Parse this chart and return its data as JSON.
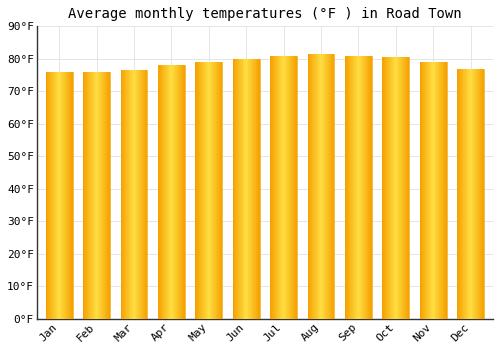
{
  "title": "Average monthly temperatures (°F ) in Road Town",
  "months": [
    "Jan",
    "Feb",
    "Mar",
    "Apr",
    "May",
    "Jun",
    "Jul",
    "Aug",
    "Sep",
    "Oct",
    "Nov",
    "Dec"
  ],
  "values": [
    76,
    76,
    76.5,
    78,
    79,
    80,
    81,
    81.5,
    81,
    80.5,
    79,
    77
  ],
  "ylim": [
    0,
    90
  ],
  "yticks": [
    0,
    10,
    20,
    30,
    40,
    50,
    60,
    70,
    80,
    90
  ],
  "ytick_labels": [
    "0°F",
    "10°F",
    "20°F",
    "30°F",
    "40°F",
    "50°F",
    "60°F",
    "70°F",
    "80°F",
    "90°F"
  ],
  "bar_color_center": "#FFD740",
  "bar_color_edge": "#F5A000",
  "background_color": "#FFFFFF",
  "grid_color": "#E0E0E0",
  "title_fontsize": 10,
  "tick_fontsize": 8,
  "font_family": "monospace"
}
